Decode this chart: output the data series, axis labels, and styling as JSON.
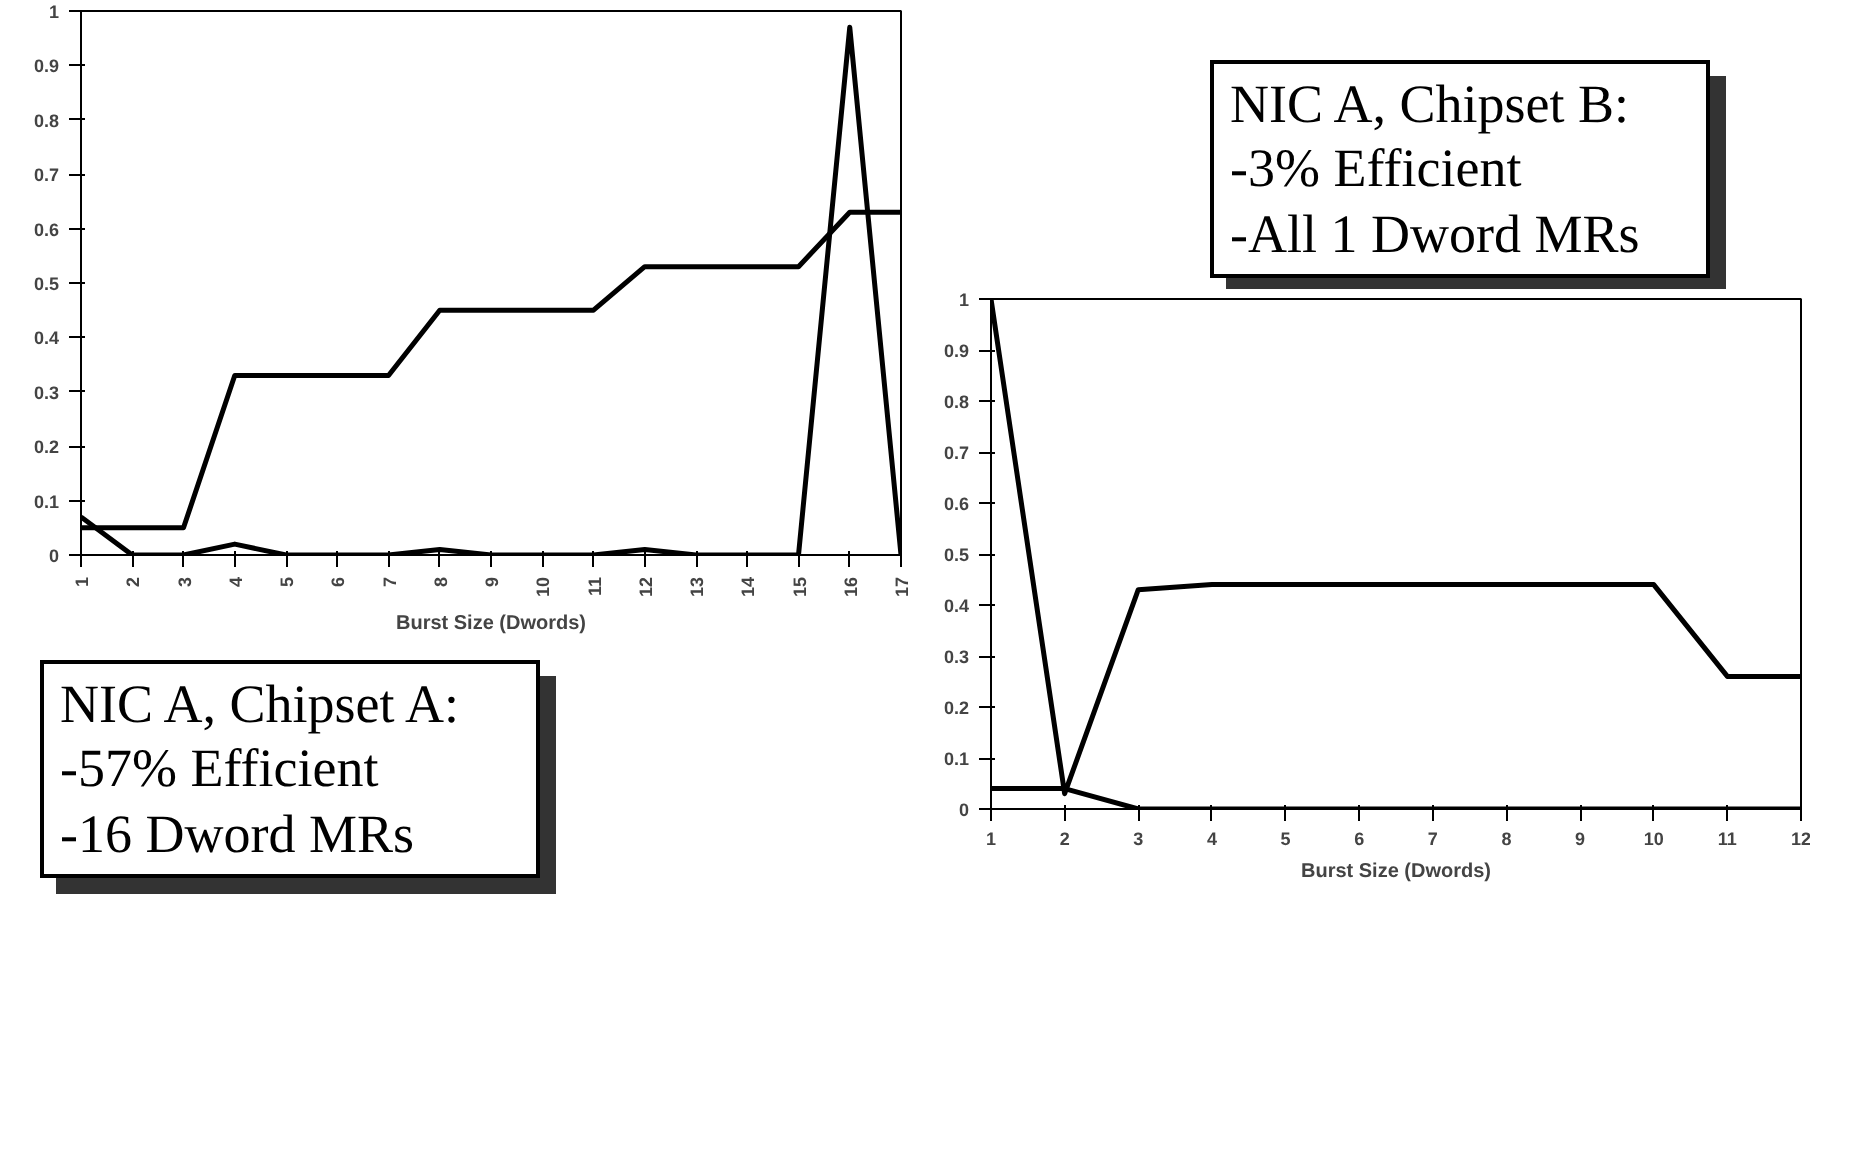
{
  "chart_data": [
    {
      "type": "line",
      "xlabel": "Burst Size (Dwords)",
      "categories": [
        "1",
        "2",
        "3",
        "4",
        "5",
        "6",
        "7",
        "8",
        "9",
        "10",
        "11",
        "12",
        "13",
        "14",
        "15",
        "16",
        "17"
      ],
      "series": [
        {
          "color": "#000000",
          "values": [
            0.05,
            0.05,
            0.05,
            0.33,
            0.33,
            0.33,
            0.33,
            0.45,
            0.45,
            0.45,
            0.45,
            0.53,
            0.53,
            0.53,
            0.53,
            0.63,
            0.63
          ]
        },
        {
          "color": "#000000",
          "values": [
            0.07,
            0,
            0,
            0.02,
            0,
            0,
            0,
            0.01,
            0,
            0,
            0,
            0.01,
            0,
            0,
            0,
            0.97,
            0
          ]
        }
      ],
      "ylim": [
        0,
        1
      ],
      "yticks": [
        0,
        0.1,
        0.2,
        0.3,
        0.4,
        0.5,
        0.6,
        0.7,
        0.8,
        0.9,
        1
      ],
      "grid": false,
      "marker": "none",
      "line_style": "solid",
      "annotations": [
        "NIC A, Chipset A:\n-57% Efficient\n-16 Dword MRs"
      ]
    },
    {
      "type": "line",
      "xlabel": "Burst Size (Dwords)",
      "categories": [
        "1",
        "2",
        "3",
        "4",
        "5",
        "6",
        "7",
        "8",
        "9",
        "10",
        "11",
        "12"
      ],
      "series": [
        {
          "color": "#000000",
          "values": [
            1,
            0.03,
            0.43,
            0.44,
            0.44,
            0.44,
            0.44,
            0.44,
            0.44,
            0.44,
            0.26,
            0.26
          ]
        },
        {
          "color": "#000000",
          "values": [
            0.04,
            0.04,
            0,
            0,
            0,
            0,
            0,
            0,
            0,
            0,
            0,
            0
          ]
        }
      ],
      "ylim": [
        0,
        1
      ],
      "yticks": [
        0,
        0.1,
        0.2,
        0.3,
        0.4,
        0.5,
        0.6,
        0.7,
        0.8,
        0.9,
        1
      ],
      "grid": false,
      "marker": "none",
      "line_style": "solid",
      "annotations": [
        "NIC A, Chipset B:\n-3% Efficient\n-All 1 Dword MRs"
      ]
    }
  ]
}
